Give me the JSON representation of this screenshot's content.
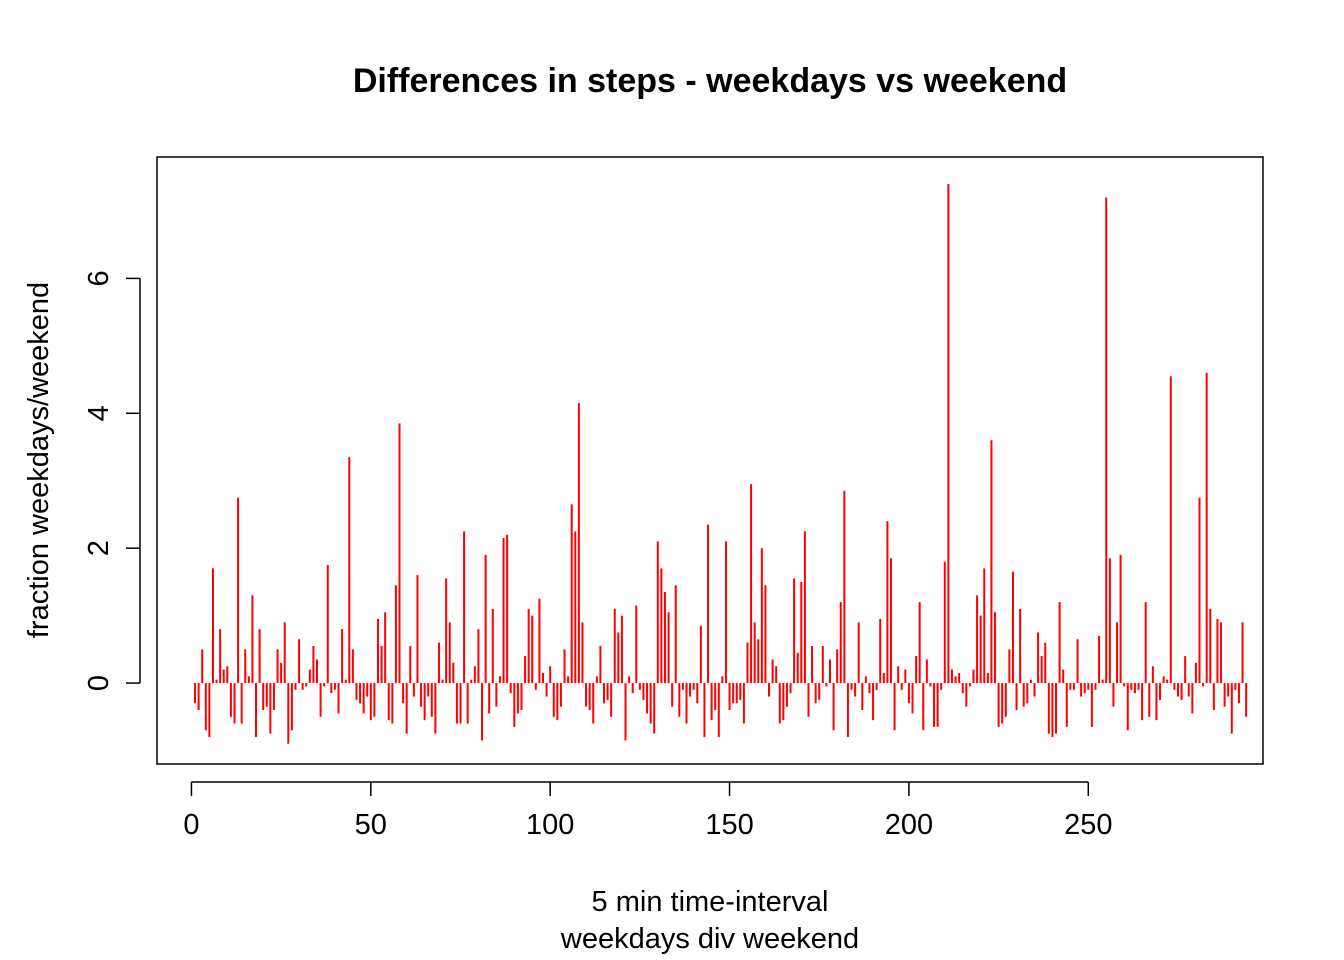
{
  "chart_data": {
    "type": "bar",
    "title": "Differences in steps - weekdays vs weekend",
    "xlabel": "5 min time-interval",
    "xlabel2": "weekdays div weekend",
    "ylabel": "fraction weekdays/weekend",
    "xlim": [
      -9.6,
      298.7
    ],
    "ylim": [
      -1.2,
      7.8
    ],
    "xticks": [
      0,
      50,
      100,
      150,
      200,
      250
    ],
    "yticks": [
      0,
      2,
      4,
      6
    ],
    "color": "#ff0000",
    "x_start": 1,
    "values": [
      -0.3,
      -0.4,
      0.5,
      -0.7,
      -0.8,
      1.7,
      0.05,
      0.8,
      0.2,
      0.25,
      -0.5,
      -0.6,
      2.75,
      -0.6,
      0.5,
      0.1,
      1.3,
      -0.8,
      0.8,
      -0.4,
      -0.35,
      -0.75,
      -0.4,
      0.5,
      0.3,
      0.9,
      -0.9,
      -0.7,
      -0.1,
      0.65,
      -0.1,
      -0.05,
      0.2,
      0.55,
      0.35,
      -0.5,
      -0.05,
      1.75,
      -0.15,
      -0.1,
      -0.45,
      0.8,
      0.05,
      3.35,
      0.5,
      -0.25,
      -0.3,
      -0.45,
      -0.2,
      -0.55,
      -0.5,
      0.95,
      0.55,
      1.05,
      -0.55,
      -0.6,
      1.45,
      3.85,
      -0.3,
      -0.75,
      0.55,
      -0.2,
      1.6,
      -0.35,
      -0.55,
      -0.2,
      -0.5,
      -0.75,
      0.6,
      0.05,
      1.55,
      0.9,
      0.3,
      -0.6,
      -0.6,
      2.25,
      -0.6,
      0.05,
      0.25,
      0.8,
      -0.85,
      1.9,
      -0.45,
      1.1,
      -0.35,
      0.1,
      2.15,
      2.2,
      -0.15,
      -0.65,
      -0.45,
      -0.4,
      0.4,
      1.1,
      1.0,
      -0.1,
      1.25,
      0.15,
      -0.2,
      0.25,
      -0.5,
      -0.55,
      -0.35,
      0.5,
      0.1,
      2.65,
      2.25,
      4.15,
      0.9,
      -0.35,
      -0.4,
      -0.6,
      0.1,
      0.55,
      -0.3,
      -0.25,
      -0.5,
      1.1,
      0.75,
      1.0,
      -0.85,
      0.1,
      -0.15,
      1.15,
      -0.1,
      -0.25,
      -0.45,
      -0.6,
      -0.75,
      2.1,
      1.7,
      1.35,
      1.05,
      -0.35,
      1.45,
      -0.5,
      -0.1,
      -0.6,
      -0.2,
      -0.1,
      -0.3,
      0.85,
      -0.8,
      2.35,
      -0.55,
      -0.4,
      -0.8,
      0.1,
      2.1,
      -0.4,
      -0.3,
      -0.3,
      -0.25,
      -0.6,
      0.6,
      2.95,
      0.9,
      0.65,
      2.0,
      1.45,
      -0.2,
      0.35,
      0.25,
      -0.6,
      -0.55,
      -0.35,
      -0.15,
      1.55,
      0.45,
      1.5,
      2.25,
      -0.5,
      0.55,
      -0.3,
      -0.25,
      0.55,
      -0.05,
      0.35,
      -0.7,
      0.5,
      1.2,
      2.85,
      -0.8,
      -0.1,
      -0.2,
      0.9,
      -0.4,
      0.1,
      -0.15,
      -0.55,
      -0.1,
      0.95,
      0.15,
      2.4,
      1.85,
      -0.7,
      0.25,
      -0.1,
      0.2,
      -0.3,
      -0.45,
      0.4,
      1.2,
      -0.7,
      0.35,
      -0.05,
      -0.65,
      -0.65,
      -0.1,
      1.8,
      7.4,
      0.2,
      0.1,
      0.15,
      -0.15,
      -0.35,
      -0.05,
      0.2,
      1.3,
      1.0,
      1.7,
      0.15,
      3.6,
      1.05,
      -0.65,
      -0.6,
      -0.5,
      0.5,
      1.65,
      -0.4,
      1.1,
      -0.35,
      -0.3,
      0.05,
      -0.2,
      0.75,
      0.4,
      0.6,
      -0.75,
      -0.8,
      -0.75,
      1.2,
      0.2,
      -0.65,
      -0.1,
      -0.1,
      0.65,
      -0.2,
      -0.15,
      -0.1,
      -0.65,
      -0.1,
      0.7,
      0.05,
      7.2,
      1.85,
      -0.35,
      0.9,
      1.9,
      -0.05,
      -0.7,
      -0.1,
      -0.15,
      -0.1,
      -0.55,
      1.2,
      -0.5,
      0.25,
      -0.55,
      -0.25,
      0.1,
      0.05,
      4.55,
      -0.1,
      -0.2,
      -0.25,
      0.4,
      -0.2,
      -0.45,
      0.3,
      2.75,
      -0.05,
      4.6,
      1.1,
      -0.4,
      0.95,
      0.9,
      -0.35,
      -0.2,
      -0.75,
      -0.1,
      -0.3,
      0.9,
      -0.5
    ]
  }
}
